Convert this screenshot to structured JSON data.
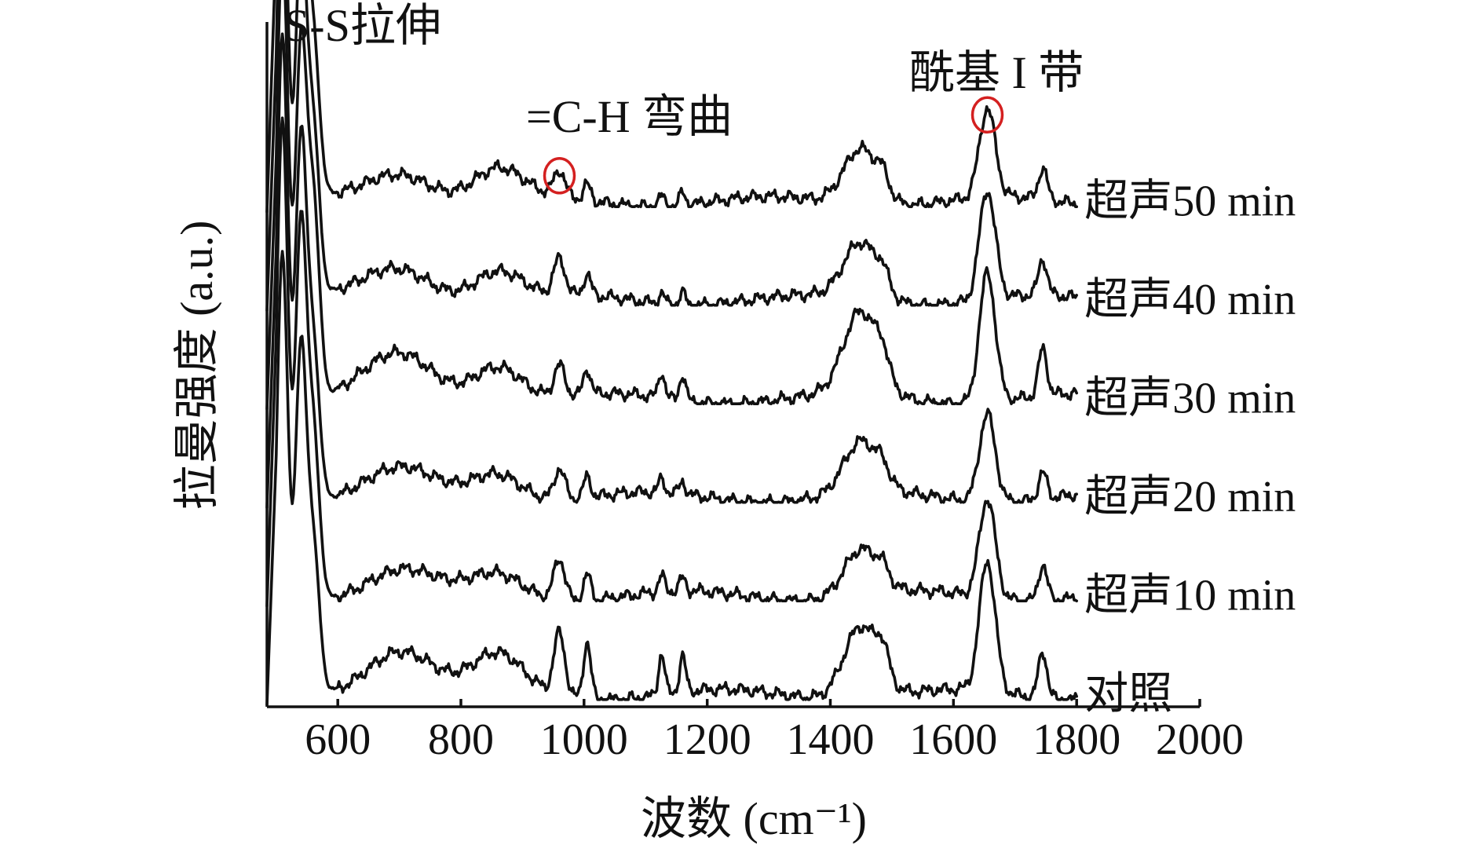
{
  "chart_data": {
    "type": "line",
    "title": "",
    "xlabel": "波数 (cm⁻¹)",
    "ylabel": "拉曼强度 (a.u.)",
    "xlim": [
      485,
      2000
    ],
    "x_ticks": [
      600,
      800,
      1000,
      1200,
      1400,
      1600,
      1800,
      2000
    ],
    "ylim": [
      0,
      6.6
    ],
    "grid": false,
    "legend": "inline-right",
    "x_peaks": [
      {
        "name": "ss1",
        "center": 510,
        "width": 9
      },
      {
        "name": "ss2",
        "center": 540,
        "width": 9
      },
      {
        "name": "ss3",
        "center": 560,
        "width": 10
      },
      {
        "name": "hump700",
        "center": 700,
        "width": 55
      },
      {
        "name": "hump830",
        "center": 860,
        "width": 40
      },
      {
        "name": "ch",
        "center": 960,
        "width": 9
      },
      {
        "name": "p1005",
        "center": 1005,
        "width": 6
      },
      {
        "name": "p1126",
        "center": 1126,
        "width": 5
      },
      {
        "name": "p1160",
        "center": 1160,
        "width": 5
      },
      {
        "name": "amideIII",
        "center": 1450,
        "width": 28
      },
      {
        "name": "sh",
        "center": 1485,
        "width": 10
      },
      {
        "name": "amideI",
        "center": 1655,
        "width": 13
      },
      {
        "name": "p1745",
        "center": 1745,
        "width": 7
      }
    ],
    "series": [
      {
        "name": "对照",
        "offset": 0.0,
        "weights": [
          4.2,
          3.2,
          1.4,
          0.45,
          0.35,
          0.6,
          0.55,
          0.4,
          0.35,
          0.7,
          0.25,
          1.25,
          0.45
        ]
      },
      {
        "name": "超声10 min",
        "offset": 0.95,
        "weights": [
          4.6,
          3.5,
          1.6,
          0.25,
          0.2,
          0.4,
          0.25,
          0.15,
          0.12,
          0.45,
          0.12,
          0.95,
          0.35
        ]
      },
      {
        "name": "超声20 min",
        "offset": 1.9,
        "weights": [
          4.5,
          3.4,
          1.5,
          0.25,
          0.25,
          0.3,
          0.2,
          0.13,
          0.12,
          0.5,
          0.12,
          0.85,
          0.25
        ]
      },
      {
        "name": "超声30 min",
        "offset": 2.85,
        "weights": [
          4.4,
          3.3,
          1.9,
          0.4,
          0.35,
          0.3,
          0.25,
          0.25,
          0.25,
          0.8,
          0.2,
          1.25,
          0.45
        ]
      },
      {
        "name": "超声40 min",
        "offset": 3.8,
        "weights": [
          4.4,
          3.3,
          1.6,
          0.3,
          0.3,
          0.35,
          0.2,
          0.1,
          0.12,
          0.55,
          0.15,
          1.05,
          0.35
        ]
      },
      {
        "name": "超声50 min",
        "offset": 4.75,
        "weights": [
          4.6,
          3.4,
          1.5,
          0.3,
          0.3,
          0.25,
          0.15,
          0.1,
          0.12,
          0.55,
          0.15,
          0.85,
          0.3
        ]
      }
    ],
    "annotations": [
      {
        "text": "S-S拉伸",
        "marker_x": 510
      },
      {
        "text": "=C-H 弯曲",
        "marker_x": 960
      },
      {
        "text": "酰基 I 带",
        "marker_x": 1655
      }
    ]
  },
  "colors": {
    "line": "#111111",
    "marker": "#d42020",
    "background": "#ffffff"
  }
}
